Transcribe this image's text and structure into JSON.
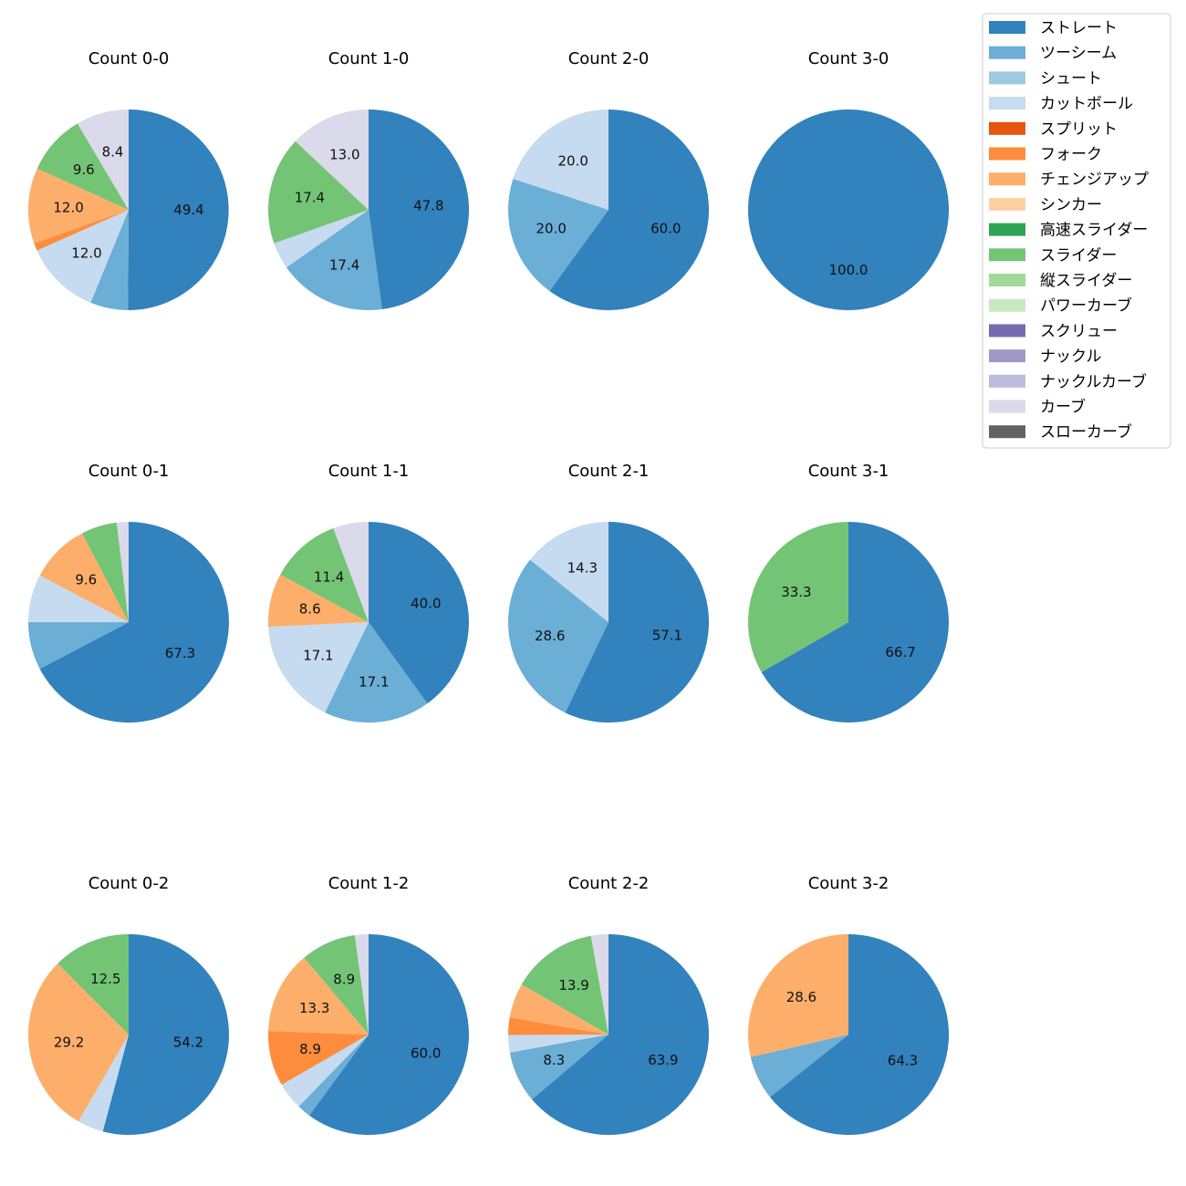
{
  "chart_data": {
    "type": "pie",
    "legend": {
      "placement": "top-right",
      "entries": [
        {
          "name": "ストレート",
          "color": "#3182bd"
        },
        {
          "name": "ツーシーム",
          "color": "#6baed6"
        },
        {
          "name": "シュート",
          "color": "#9ecae1"
        },
        {
          "name": "カットボール",
          "color": "#c6dbef"
        },
        {
          "name": "スプリット",
          "color": "#e6550d"
        },
        {
          "name": "フォーク",
          "color": "#fd8d3c"
        },
        {
          "name": "チェンジアップ",
          "color": "#fdae6b"
        },
        {
          "name": "シンカー",
          "color": "#fdd0a2"
        },
        {
          "name": "高速スライダー",
          "color": "#31a354"
        },
        {
          "name": "スライダー",
          "color": "#74c476"
        },
        {
          "name": "縦スライダー",
          "color": "#a1d99b"
        },
        {
          "name": "パワーカーブ",
          "color": "#c7e9c0"
        },
        {
          "name": "スクリュー",
          "color": "#756bb1"
        },
        {
          "name": "ナックル",
          "color": "#9e9ac8"
        },
        {
          "name": "ナックルカーブ",
          "color": "#bcbddc"
        },
        {
          "name": "カーブ",
          "color": "#dadaeb"
        },
        {
          "name": "スローカーブ",
          "color": "#636363"
        }
      ]
    },
    "charts": [
      {
        "title": "Count 0-0",
        "slices": [
          {
            "pitch": "ストレート",
            "value": 49.4,
            "label": "49.4"
          },
          {
            "pitch": "ツーシーム",
            "value": 6.0,
            "label": ""
          },
          {
            "pitch": "カットボール",
            "value": 12.0,
            "label": "12.0"
          },
          {
            "pitch": "フォーク",
            "value": 1.2,
            "label": ""
          },
          {
            "pitch": "チェンジアップ",
            "value": 12.0,
            "label": "12.0"
          },
          {
            "pitch": "スライダー",
            "value": 9.6,
            "label": "9.6"
          },
          {
            "pitch": "カーブ",
            "value": 8.4,
            "label": "8.4"
          }
        ]
      },
      {
        "title": "Count 1-0",
        "slices": [
          {
            "pitch": "ストレート",
            "value": 47.8,
            "label": "47.8"
          },
          {
            "pitch": "ツーシーム",
            "value": 17.4,
            "label": "17.4"
          },
          {
            "pitch": "カットボール",
            "value": 4.3,
            "label": ""
          },
          {
            "pitch": "スライダー",
            "value": 17.4,
            "label": "17.4"
          },
          {
            "pitch": "カーブ",
            "value": 13.0,
            "label": "13.0"
          }
        ]
      },
      {
        "title": "Count 2-0",
        "slices": [
          {
            "pitch": "ストレート",
            "value": 60.0,
            "label": "60.0"
          },
          {
            "pitch": "ツーシーム",
            "value": 20.0,
            "label": "20.0"
          },
          {
            "pitch": "カットボール",
            "value": 20.0,
            "label": "20.0"
          }
        ]
      },
      {
        "title": "Count 3-0",
        "slices": [
          {
            "pitch": "ストレート",
            "value": 100.0,
            "label": "100.0"
          }
        ]
      },
      {
        "title": "Count 0-1",
        "slices": [
          {
            "pitch": "ストレート",
            "value": 67.3,
            "label": "67.3"
          },
          {
            "pitch": "ツーシーム",
            "value": 7.7,
            "label": ""
          },
          {
            "pitch": "カットボール",
            "value": 7.7,
            "label": ""
          },
          {
            "pitch": "チェンジアップ",
            "value": 9.6,
            "label": "9.6"
          },
          {
            "pitch": "スライダー",
            "value": 5.8,
            "label": ""
          },
          {
            "pitch": "カーブ",
            "value": 1.9,
            "label": ""
          }
        ]
      },
      {
        "title": "Count 1-1",
        "slices": [
          {
            "pitch": "ストレート",
            "value": 40.0,
            "label": "40.0"
          },
          {
            "pitch": "ツーシーム",
            "value": 17.1,
            "label": "17.1"
          },
          {
            "pitch": "カットボール",
            "value": 17.1,
            "label": "17.1"
          },
          {
            "pitch": "チェンジアップ",
            "value": 8.6,
            "label": "8.6"
          },
          {
            "pitch": "スライダー",
            "value": 11.4,
            "label": "11.4"
          },
          {
            "pitch": "カーブ",
            "value": 5.7,
            "label": ""
          }
        ]
      },
      {
        "title": "Count 2-1",
        "slices": [
          {
            "pitch": "ストレート",
            "value": 57.1,
            "label": "57.1"
          },
          {
            "pitch": "ツーシーム",
            "value": 28.6,
            "label": "28.6"
          },
          {
            "pitch": "カットボール",
            "value": 14.3,
            "label": "14.3"
          }
        ]
      },
      {
        "title": "Count 3-1",
        "slices": [
          {
            "pitch": "ストレート",
            "value": 66.7,
            "label": "66.7"
          },
          {
            "pitch": "スライダー",
            "value": 33.3,
            "label": "33.3"
          }
        ]
      },
      {
        "title": "Count 0-2",
        "slices": [
          {
            "pitch": "ストレート",
            "value": 54.2,
            "label": "54.2"
          },
          {
            "pitch": "カットボール",
            "value": 4.2,
            "label": ""
          },
          {
            "pitch": "チェンジアップ",
            "value": 29.2,
            "label": "29.2"
          },
          {
            "pitch": "スライダー",
            "value": 12.5,
            "label": "12.5"
          }
        ]
      },
      {
        "title": "Count 1-2",
        "slices": [
          {
            "pitch": "ストレート",
            "value": 60.0,
            "label": "60.0"
          },
          {
            "pitch": "ツーシーム",
            "value": 2.2,
            "label": ""
          },
          {
            "pitch": "カットボール",
            "value": 4.4,
            "label": ""
          },
          {
            "pitch": "フォーク",
            "value": 8.9,
            "label": "8.9"
          },
          {
            "pitch": "チェンジアップ",
            "value": 13.3,
            "label": "13.3"
          },
          {
            "pitch": "スライダー",
            "value": 8.9,
            "label": "8.9"
          },
          {
            "pitch": "カーブ",
            "value": 2.2,
            "label": ""
          }
        ]
      },
      {
        "title": "Count 2-2",
        "slices": [
          {
            "pitch": "ストレート",
            "value": 63.9,
            "label": "63.9"
          },
          {
            "pitch": "ツーシーム",
            "value": 8.3,
            "label": "8.3"
          },
          {
            "pitch": "カットボール",
            "value": 2.8,
            "label": ""
          },
          {
            "pitch": "フォーク",
            "value": 2.8,
            "label": ""
          },
          {
            "pitch": "チェンジアップ",
            "value": 5.6,
            "label": ""
          },
          {
            "pitch": "スライダー",
            "value": 13.9,
            "label": "13.9"
          },
          {
            "pitch": "カーブ",
            "value": 2.8,
            "label": ""
          }
        ]
      },
      {
        "title": "Count 3-2",
        "slices": [
          {
            "pitch": "ストレート",
            "value": 64.3,
            "label": "64.3"
          },
          {
            "pitch": "ツーシーム",
            "value": 7.1,
            "label": ""
          },
          {
            "pitch": "チェンジアップ",
            "value": 28.6,
            "label": "28.6"
          }
        ]
      }
    ]
  }
}
